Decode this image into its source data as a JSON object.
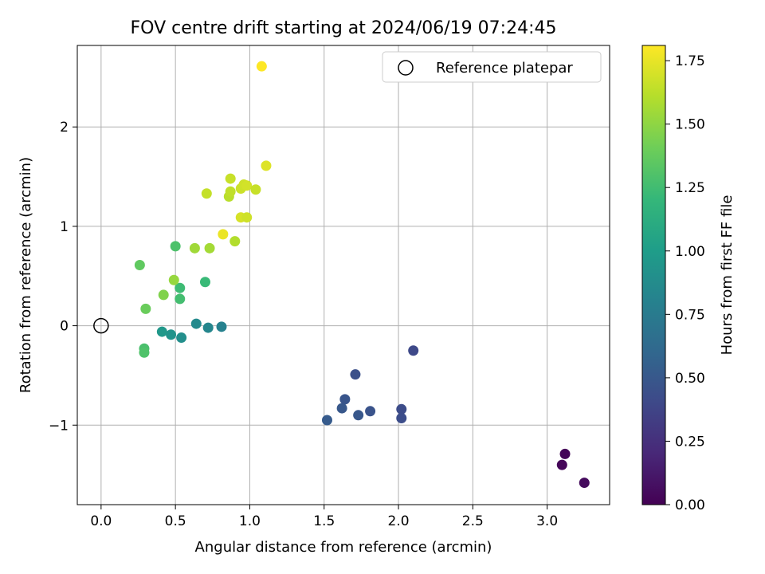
{
  "chart_data": {
    "type": "scatter",
    "title": "FOV centre drift starting at 2024/06/19 07:24:45",
    "xlabel": "Angular distance from reference (arcmin)",
    "ylabel": "Rotation from reference (arcmin)",
    "xlim": [
      -0.16,
      3.42
    ],
    "ylim": [
      -1.8,
      2.82
    ],
    "xticks": [
      0.0,
      0.5,
      1.0,
      1.5,
      2.0,
      2.5,
      3.0
    ],
    "xtick_labels": [
      "0.0",
      "0.5",
      "1.0",
      "1.5",
      "2.0",
      "2.5",
      "3.0"
    ],
    "yticks": [
      -1,
      0,
      1,
      2
    ],
    "ytick_labels": [
      "−1",
      "0",
      "1",
      "2"
    ],
    "grid": true,
    "legend": {
      "position": "upper right",
      "entries": [
        "Reference platepar"
      ]
    },
    "reference_point": {
      "x": 0.0,
      "y": 0.0
    },
    "colorbar": {
      "label": "Hours from first FF file",
      "range": [
        0.0,
        1.81
      ],
      "ticks": [
        0.0,
        0.25,
        0.5,
        0.75,
        1.0,
        1.25,
        1.5,
        1.75
      ],
      "tick_labels": [
        "0.00",
        "0.25",
        "0.50",
        "0.75",
        "1.00",
        "1.25",
        "1.50",
        "1.75"
      ],
      "colormap": "viridis"
    },
    "points": [
      {
        "x": 3.12,
        "y": -1.29,
        "c": 0.02
      },
      {
        "x": 3.1,
        "y": -1.4,
        "c": 0.03
      },
      {
        "x": 3.25,
        "y": -1.58,
        "c": 0.05
      },
      {
        "x": 2.1,
        "y": -0.25,
        "c": 0.4
      },
      {
        "x": 2.02,
        "y": -0.84,
        "c": 0.42
      },
      {
        "x": 2.02,
        "y": -0.93,
        "c": 0.43
      },
      {
        "x": 1.71,
        "y": -0.49,
        "c": 0.45
      },
      {
        "x": 1.81,
        "y": -0.86,
        "c": 0.47
      },
      {
        "x": 1.64,
        "y": -0.74,
        "c": 0.48
      },
      {
        "x": 1.73,
        "y": -0.9,
        "c": 0.49
      },
      {
        "x": 1.62,
        "y": -0.83,
        "c": 0.5
      },
      {
        "x": 1.52,
        "y": -0.95,
        "c": 0.52
      },
      {
        "x": 0.81,
        "y": -0.01,
        "c": 0.8
      },
      {
        "x": 0.72,
        "y": -0.02,
        "c": 0.83
      },
      {
        "x": 0.64,
        "y": 0.02,
        "c": 0.86
      },
      {
        "x": 0.54,
        "y": -0.12,
        "c": 0.9
      },
      {
        "x": 0.47,
        "y": -0.09,
        "c": 0.93
      },
      {
        "x": 0.41,
        "y": -0.06,
        "c": 0.96
      },
      {
        "x": 0.29,
        "y": -0.23,
        "c": 1.28
      },
      {
        "x": 0.29,
        "y": -0.27,
        "c": 1.3
      },
      {
        "x": 0.7,
        "y": 0.44,
        "c": 1.22
      },
      {
        "x": 0.53,
        "y": 0.38,
        "c": 1.24
      },
      {
        "x": 0.53,
        "y": 0.27,
        "c": 1.26
      },
      {
        "x": 0.5,
        "y": 0.8,
        "c": 1.29
      },
      {
        "x": 0.26,
        "y": 0.61,
        "c": 1.36
      },
      {
        "x": 0.3,
        "y": 0.17,
        "c": 1.39
      },
      {
        "x": 0.42,
        "y": 0.31,
        "c": 1.46
      },
      {
        "x": 0.49,
        "y": 0.46,
        "c": 1.52
      },
      {
        "x": 0.63,
        "y": 0.78,
        "c": 1.55
      },
      {
        "x": 0.73,
        "y": 0.78,
        "c": 1.56
      },
      {
        "x": 0.9,
        "y": 0.85,
        "c": 1.6
      },
      {
        "x": 0.71,
        "y": 1.33,
        "c": 1.65
      },
      {
        "x": 0.86,
        "y": 1.3,
        "c": 1.62
      },
      {
        "x": 0.87,
        "y": 1.35,
        "c": 1.64
      },
      {
        "x": 0.87,
        "y": 1.48,
        "c": 1.66
      },
      {
        "x": 0.94,
        "y": 1.38,
        "c": 1.67
      },
      {
        "x": 0.96,
        "y": 1.42,
        "c": 1.68
      },
      {
        "x": 0.98,
        "y": 1.41,
        "c": 1.69
      },
      {
        "x": 1.04,
        "y": 1.37,
        "c": 1.66
      },
      {
        "x": 0.94,
        "y": 1.09,
        "c": 1.7
      },
      {
        "x": 0.98,
        "y": 1.09,
        "c": 1.68
      },
      {
        "x": 0.82,
        "y": 0.92,
        "c": 1.76
      },
      {
        "x": 1.11,
        "y": 1.61,
        "c": 1.72
      },
      {
        "x": 1.08,
        "y": 2.61,
        "c": 1.81
      }
    ]
  }
}
